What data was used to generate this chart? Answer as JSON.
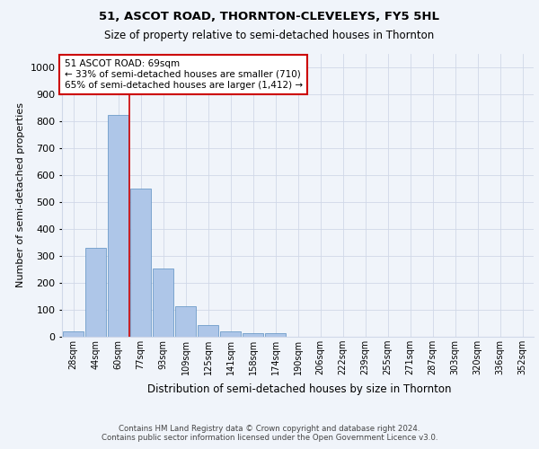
{
  "title1": "51, ASCOT ROAD, THORNTON-CLEVELEYS, FY5 5HL",
  "title2": "Size of property relative to semi-detached houses in Thornton",
  "xlabel": "Distribution of semi-detached houses by size in Thornton",
  "ylabel": "Number of semi-detached properties",
  "categories": [
    "28sqm",
    "44sqm",
    "60sqm",
    "77sqm",
    "93sqm",
    "109sqm",
    "125sqm",
    "141sqm",
    "158sqm",
    "174sqm",
    "190sqm",
    "206sqm",
    "222sqm",
    "239sqm",
    "255sqm",
    "271sqm",
    "287sqm",
    "303sqm",
    "320sqm",
    "336sqm",
    "352sqm"
  ],
  "values": [
    20,
    330,
    825,
    550,
    255,
    115,
    42,
    20,
    13,
    12,
    0,
    0,
    0,
    0,
    0,
    0,
    0,
    0,
    0,
    0,
    0
  ],
  "bar_color": "#aec6e8",
  "bar_edge_color": "#5a8fc2",
  "vline_color": "#cc0000",
  "vline_pos": 2.5,
  "annotation_text": "51 ASCOT ROAD: 69sqm\n← 33% of semi-detached houses are smaller (710)\n65% of semi-detached houses are larger (1,412) →",
  "annotation_box_color": "#ffffff",
  "annotation_box_edge": "#cc0000",
  "ylim": [
    0,
    1050
  ],
  "yticks": [
    0,
    100,
    200,
    300,
    400,
    500,
    600,
    700,
    800,
    900,
    1000
  ],
  "footer": "Contains HM Land Registry data © Crown copyright and database right 2024.\nContains public sector information licensed under the Open Government Licence v3.0.",
  "bg_color": "#f0f4fa",
  "grid_color": "#d0d8e8"
}
